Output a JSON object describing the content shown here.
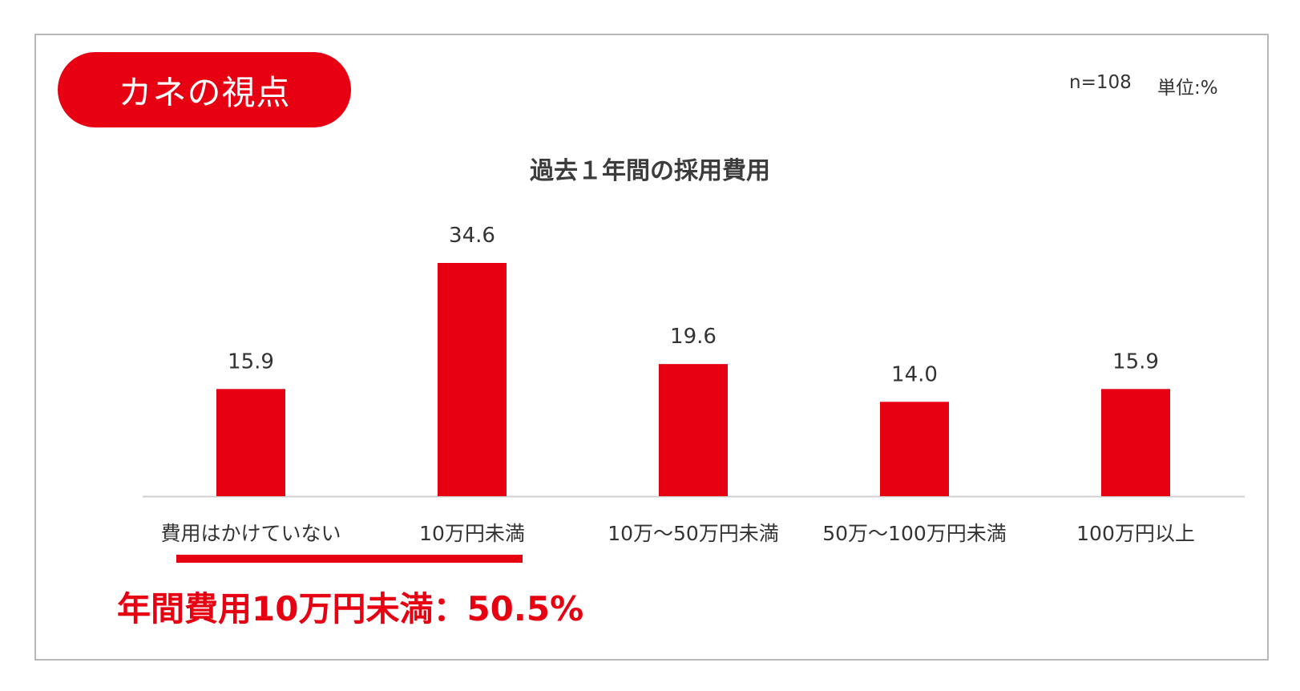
{
  "header": {
    "badge_label": "カネの視点",
    "sample_size": "n=108",
    "unit": "単位:%"
  },
  "colors": {
    "accent": "#e60012",
    "text": "#333333",
    "axis": "#d0d0d0"
  },
  "chart_data": {
    "type": "bar",
    "title": "過去１年間の採用費用",
    "xlabel": "",
    "ylabel": "",
    "categories": [
      "費用はかけていない",
      "10万円未満",
      "10万～50万円未満",
      "50万～100万円未満",
      "100万円以上"
    ],
    "values": [
      15.9,
      34.6,
      19.6,
      14.0,
      15.9
    ],
    "value_labels": [
      "15.9",
      "34.6",
      "19.6",
      "14.0",
      "15.9"
    ],
    "ylim": [
      0,
      35
    ],
    "grid": false,
    "legend": "none"
  },
  "summary": {
    "text": "年間費用10万円未満：50.5%"
  }
}
